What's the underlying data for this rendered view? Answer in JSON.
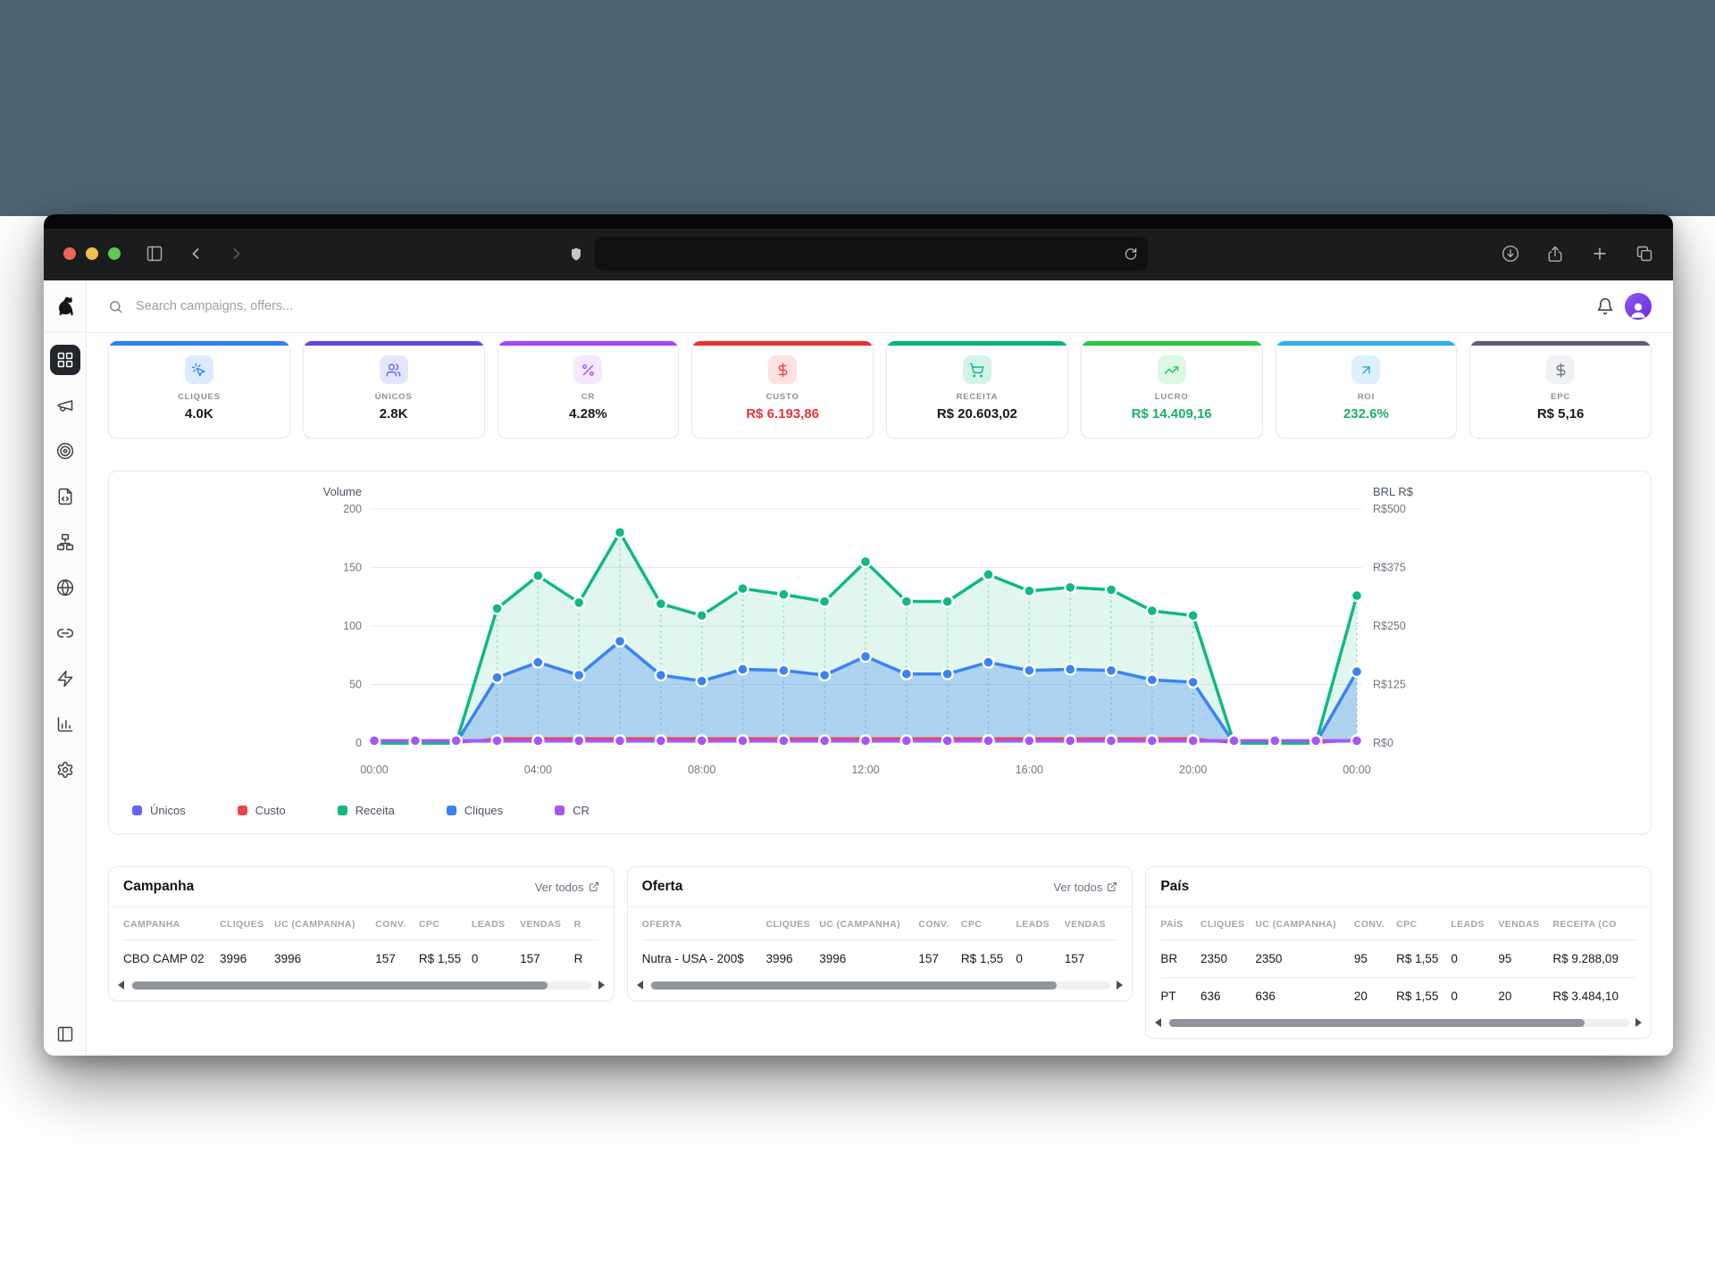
{
  "browser": {
    "address_value": "",
    "icons": [
      "sidebar-toggle",
      "back",
      "forward",
      "shield",
      "reload",
      "download",
      "share",
      "new-tab",
      "tab-overview"
    ]
  },
  "topbar": {
    "search_placeholder": "Search campaigns, offers...",
    "icons": [
      "search",
      "bell",
      "avatar"
    ]
  },
  "sidebar": {
    "logo": "dog-logo",
    "items": [
      {
        "name": "dashboard",
        "icon": "grid",
        "active": true
      },
      {
        "name": "campaigns",
        "icon": "megaphone",
        "active": false
      },
      {
        "name": "offers",
        "icon": "target",
        "active": false
      },
      {
        "name": "scripts",
        "icon": "code-file",
        "active": false
      },
      {
        "name": "funnels",
        "icon": "sitemap",
        "active": false
      },
      {
        "name": "domains",
        "icon": "globe",
        "active": false
      },
      {
        "name": "links",
        "icon": "link",
        "active": false
      },
      {
        "name": "automation",
        "icon": "zap",
        "active": false
      },
      {
        "name": "reports",
        "icon": "bar-chart",
        "active": false
      },
      {
        "name": "settings",
        "icon": "gear",
        "active": false
      }
    ],
    "bottom_icon": "panel-left"
  },
  "kpis": [
    {
      "label": "CLIQUES",
      "value": "4.0K",
      "icon": "cursor-click",
      "accent": "#2e7ef7",
      "chip_bg": "#dbeafe",
      "icon_color": "#3b82f6",
      "value_color": "#141a22"
    },
    {
      "label": "ÚNICOS",
      "value": "2.8K",
      "icon": "users",
      "accent": "#5f45e6",
      "chip_bg": "#e3e6fd",
      "icon_color": "#6366f1",
      "value_color": "#141a22"
    },
    {
      "label": "CR",
      "value": "4.28%",
      "icon": "percent",
      "accent": "#a843f5",
      "chip_bg": "#f3e8ff",
      "icon_color": "#a855f7",
      "value_color": "#141a22"
    },
    {
      "label": "CUSTO",
      "value": "R$ 6.193,86",
      "icon": "dollar",
      "accent": "#ee2f2f",
      "chip_bg": "#fee2e2",
      "icon_color": "#ef4444",
      "value_color": "#e53535"
    },
    {
      "label": "RECEITA",
      "value": "R$ 20.603,02",
      "icon": "cart",
      "accent": "#00b57c",
      "chip_bg": "#d2f5e7",
      "icon_color": "#10b981",
      "value_color": "#141a22"
    },
    {
      "label": "LUCRO",
      "value": "R$ 14.409,16",
      "icon": "trend-up",
      "accent": "#28c840",
      "chip_bg": "#dcf8e4",
      "icon_color": "#22c55e",
      "value_color": "#17b26a"
    },
    {
      "label": "ROI",
      "value": "232.6%",
      "icon": "arrow-up-right",
      "accent": "#2eb0e8",
      "chip_bg": "#dcf1fc",
      "icon_color": "#2ca7dd",
      "value_color": "#17b26a"
    },
    {
      "label": "EPC",
      "value": "R$ 5,16",
      "icon": "dollar",
      "accent": "#5a5f6a",
      "chip_bg": "#f0f1f3",
      "icon_color": "#6b7280",
      "value_color": "#141a22"
    }
  ],
  "chart_data": {
    "type": "area",
    "hours": [
      0,
      1,
      2,
      3,
      4,
      5,
      6,
      7,
      8,
      9,
      10,
      11,
      12,
      13,
      14,
      15,
      16,
      17,
      18,
      19,
      20,
      21,
      22,
      23,
      24
    ],
    "x_tick_hours": [
      0,
      4,
      8,
      12,
      16,
      20,
      24
    ],
    "x_tick_labels": [
      "00:00",
      "04:00",
      "08:00",
      "12:00",
      "16:00",
      "20:00",
      "00:00"
    ],
    "left_axis": {
      "title": "Volume",
      "ticks": [
        200,
        150,
        100,
        50,
        0
      ],
      "range": [
        0,
        200
      ]
    },
    "right_axis": {
      "title": "BRL R$",
      "ticks": [
        "R$500",
        "R$375",
        "R$250",
        "R$125",
        "R$0"
      ],
      "range": [
        0,
        500
      ]
    },
    "grid": true,
    "legend_position": "bottom",
    "series": [
      {
        "name": "Únicos",
        "color": "#6366f1",
        "area": false,
        "values": [
          0,
          0,
          0,
          56,
          69,
          58,
          87,
          58,
          53,
          63,
          62,
          58,
          74,
          59,
          59,
          69,
          62,
          63,
          62,
          54,
          52,
          0,
          0,
          0,
          61
        ]
      },
      {
        "name": "Custo",
        "color": "#ef4444",
        "area": false,
        "values": [
          0,
          0,
          0,
          4,
          4,
          4,
          4,
          4,
          4,
          4,
          4,
          4,
          4,
          4,
          4,
          4,
          4,
          4,
          4,
          4,
          4,
          0,
          0,
          0,
          3
        ]
      },
      {
        "name": "Receita",
        "color": "#10b981",
        "area": true,
        "values": [
          0,
          0,
          0,
          115,
          143,
          120,
          180,
          119,
          109,
          132,
          127,
          121,
          155,
          121,
          121,
          144,
          130,
          133,
          131,
          113,
          109,
          0,
          0,
          0,
          126
        ]
      },
      {
        "name": "Cliques",
        "color": "#3b82f6",
        "area": true,
        "values": [
          0,
          0,
          0,
          56,
          69,
          58,
          87,
          58,
          53,
          63,
          62,
          58,
          74,
          59,
          59,
          69,
          62,
          63,
          62,
          54,
          52,
          0,
          0,
          0,
          61
        ]
      },
      {
        "name": "CR",
        "color": "#a855f7",
        "area": false,
        "values": [
          2,
          2,
          2,
          2,
          2,
          2,
          2,
          2,
          2,
          2,
          2,
          2,
          2,
          2,
          2,
          2,
          2,
          2,
          2,
          2,
          2,
          2,
          2,
          2,
          2
        ]
      }
    ]
  },
  "tables": [
    {
      "title": "Campanha",
      "link": "Ver todos",
      "columns": [
        "CAMPANHA",
        "CLIQUES",
        "UC (CAMPANHA)",
        "CONV.",
        "CPC",
        "LEADS",
        "VENDAS",
        "R"
      ],
      "rows": [
        [
          "CBO CAMP 02",
          "3996",
          "3996",
          "157",
          "R$ 1,55",
          "0",
          "157",
          "R"
        ]
      ]
    },
    {
      "title": "Oferta",
      "link": "Ver todos",
      "columns": [
        "OFERTA",
        "CLIQUES",
        "UC (CAMPANHA)",
        "CONV.",
        "CPC",
        "LEADS",
        "VENDAS"
      ],
      "rows": [
        [
          "Nutra - USA - 200$",
          "3996",
          "3996",
          "157",
          "R$ 1,55",
          "0",
          "157"
        ]
      ]
    },
    {
      "title": "País",
      "link": "",
      "columns": [
        "PAÍS",
        "CLIQUES",
        "UC (CAMPANHA)",
        "CONV.",
        "CPC",
        "LEADS",
        "VENDAS",
        "RECEITA (CO"
      ],
      "rows": [
        [
          "BR",
          "2350",
          "2350",
          "95",
          "R$ 1,55",
          "0",
          "95",
          "R$ 9.288,09"
        ],
        [
          "PT",
          "636",
          "636",
          "20",
          "R$ 1,55",
          "0",
          "20",
          "R$ 3.484,10"
        ]
      ]
    }
  ]
}
